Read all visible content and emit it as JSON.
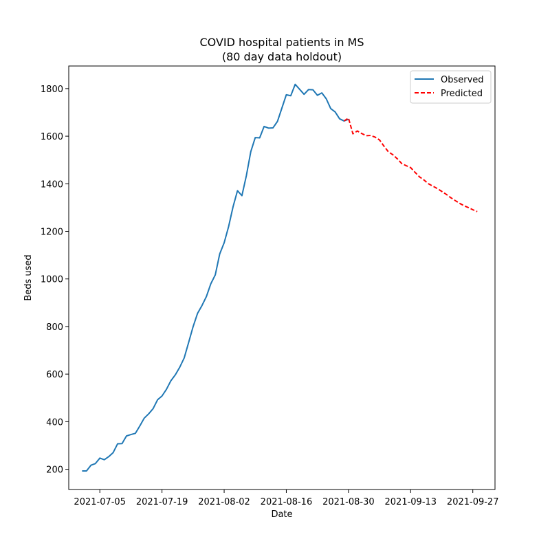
{
  "chart_data": {
    "type": "line",
    "title": "COVID hospital patients in MS",
    "subtitle": "(80 day data holdout)",
    "xlabel": "Date",
    "ylabel": "Beds used",
    "ylim": [
      115,
      1895
    ],
    "xlim": [
      "2021-06-28",
      "2021-10-02"
    ],
    "x_ticks": [
      "2021-07-05",
      "2021-07-19",
      "2021-08-02",
      "2021-08-16",
      "2021-08-30",
      "2021-09-13",
      "2021-09-27"
    ],
    "y_ticks": [
      200,
      400,
      600,
      800,
      1000,
      1200,
      1400,
      1600,
      1800
    ],
    "grid": false,
    "legend": "top-right",
    "series": [
      {
        "name": "Observed",
        "color": "#1f77b4",
        "style": "solid",
        "x": [
          "2021-07-01",
          "2021-07-02",
          "2021-07-03",
          "2021-07-04",
          "2021-07-05",
          "2021-07-06",
          "2021-07-07",
          "2021-07-08",
          "2021-07-09",
          "2021-07-10",
          "2021-07-11",
          "2021-07-12",
          "2021-07-13",
          "2021-07-14",
          "2021-07-15",
          "2021-07-16",
          "2021-07-17",
          "2021-07-18",
          "2021-07-19",
          "2021-07-20",
          "2021-07-21",
          "2021-07-22",
          "2021-07-23",
          "2021-07-24",
          "2021-07-25",
          "2021-07-26",
          "2021-07-27",
          "2021-07-28",
          "2021-07-29",
          "2021-07-30",
          "2021-07-31",
          "2021-08-01",
          "2021-08-02",
          "2021-08-03",
          "2021-08-04",
          "2021-08-05",
          "2021-08-06",
          "2021-08-07",
          "2021-08-08",
          "2021-08-09",
          "2021-08-10",
          "2021-08-11",
          "2021-08-12",
          "2021-08-13",
          "2021-08-14",
          "2021-08-15",
          "2021-08-16",
          "2021-08-17",
          "2021-08-18",
          "2021-08-19",
          "2021-08-20",
          "2021-08-21",
          "2021-08-22",
          "2021-08-23",
          "2021-08-24",
          "2021-08-25",
          "2021-08-26",
          "2021-08-27",
          "2021-08-28",
          "2021-08-29",
          "2021-08-30"
        ],
        "values": [
          193,
          193,
          217,
          224,
          247,
          240,
          253,
          270,
          307,
          308,
          340,
          346,
          351,
          382,
          415,
          433,
          455,
          492,
          508,
          536,
          572,
          597,
          629,
          668,
          733,
          799,
          855,
          888,
          926,
          980,
          1017,
          1105,
          1152,
          1220,
          1303,
          1371,
          1350,
          1434,
          1535,
          1594,
          1593,
          1641,
          1634,
          1635,
          1662,
          1718,
          1774,
          1770,
          1818,
          1797,
          1776,
          1796,
          1795,
          1772,
          1782,
          1757,
          1716,
          1702,
          1673,
          1664,
          1671
        ]
      },
      {
        "name": "Predicted",
        "color": "#ff0000",
        "style": "dashed",
        "x": [
          "2021-08-29",
          "2021-08-30",
          "2021-08-31",
          "2021-09-01",
          "2021-09-02",
          "2021-09-03",
          "2021-09-04",
          "2021-09-05",
          "2021-09-06",
          "2021-09-07",
          "2021-09-08",
          "2021-09-09",
          "2021-09-10",
          "2021-09-11",
          "2021-09-12",
          "2021-09-13",
          "2021-09-14",
          "2021-09-15",
          "2021-09-16",
          "2021-09-17",
          "2021-09-18",
          "2021-09-19",
          "2021-09-20",
          "2021-09-21",
          "2021-09-22",
          "2021-09-23",
          "2021-09-24",
          "2021-09-25",
          "2021-09-26",
          "2021-09-27",
          "2021-09-28"
        ],
        "values": [
          1664,
          1676,
          1610,
          1622,
          1611,
          1602,
          1603,
          1596,
          1584,
          1558,
          1534,
          1522,
          1505,
          1485,
          1476,
          1468,
          1448,
          1429,
          1416,
          1400,
          1390,
          1380,
          1368,
          1356,
          1342,
          1330,
          1318,
          1308,
          1300,
          1291,
          1283
        ]
      }
    ]
  }
}
